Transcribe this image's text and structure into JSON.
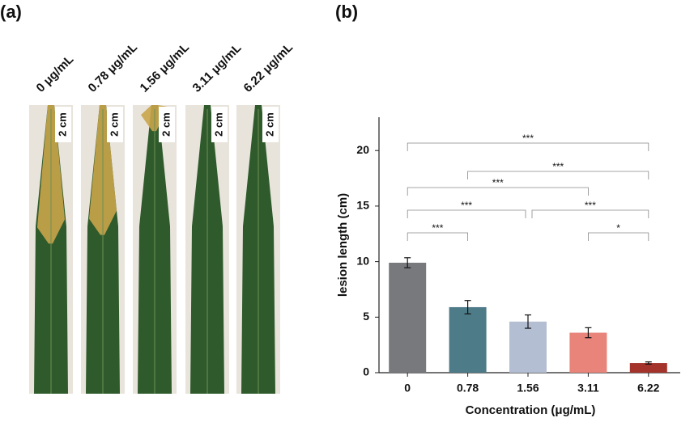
{
  "panel_a": {
    "label": "(a)",
    "concentrations": [
      "0 μg/mL",
      "0.78 μg/mL",
      "1.56 μg/mL",
      "3.11 μg/mL",
      "6.22 μg/mL"
    ],
    "scale_labels": [
      "2 cm",
      "2 cm",
      "2 cm",
      "2 cm",
      "2 cm"
    ]
  },
  "chart_data": {
    "type": "bar",
    "label": "(b)",
    "xlabel": "Concentration (μg/mL)",
    "ylabel": "lesion length (cm)",
    "categories": [
      "0",
      "0.78",
      "1.56",
      "3.11",
      "6.22"
    ],
    "values": [
      9.9,
      5.9,
      4.6,
      3.6,
      0.87
    ],
    "errors": [
      0.45,
      0.6,
      0.6,
      0.45,
      0.1
    ],
    "colors": [
      "#77797d",
      "#4e7b88",
      "#b4bed2",
      "#e8847a",
      "#a4332c"
    ],
    "ylim": [
      0,
      23
    ],
    "yticks": [
      0,
      5,
      10,
      15,
      20
    ],
    "significance": [
      "***",
      "***",
      "***",
      "***",
      "***",
      "***",
      "*"
    ]
  }
}
